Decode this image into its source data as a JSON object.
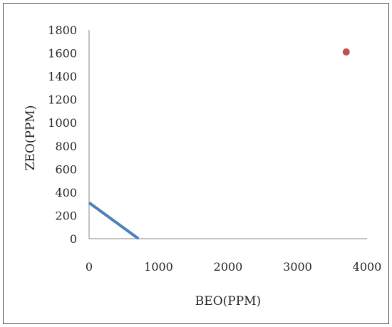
{
  "chart_data": {
    "type": "scatter",
    "title": "",
    "xlabel": "BEO(PPM)",
    "ylabel": "ZEO(PPM)",
    "xlim": [
      0,
      4000
    ],
    "ylim": [
      0,
      1800
    ],
    "x_ticks": [
      "0",
      "1000",
      "2000",
      "3000",
      "4000"
    ],
    "y_ticks": [
      "0",
      "200",
      "400",
      "600",
      "800",
      "1000",
      "1200",
      "1400",
      "1600",
      "1800"
    ],
    "grid": false,
    "legend": "none",
    "series": [
      {
        "kind": "line",
        "color": "#4f7fbd",
        "points": [
          [
            0,
            310
          ],
          [
            710,
            0
          ]
        ]
      },
      {
        "kind": "scatter",
        "color": "#c0504d",
        "points": [
          [
            3700,
            1610
          ]
        ]
      }
    ]
  }
}
